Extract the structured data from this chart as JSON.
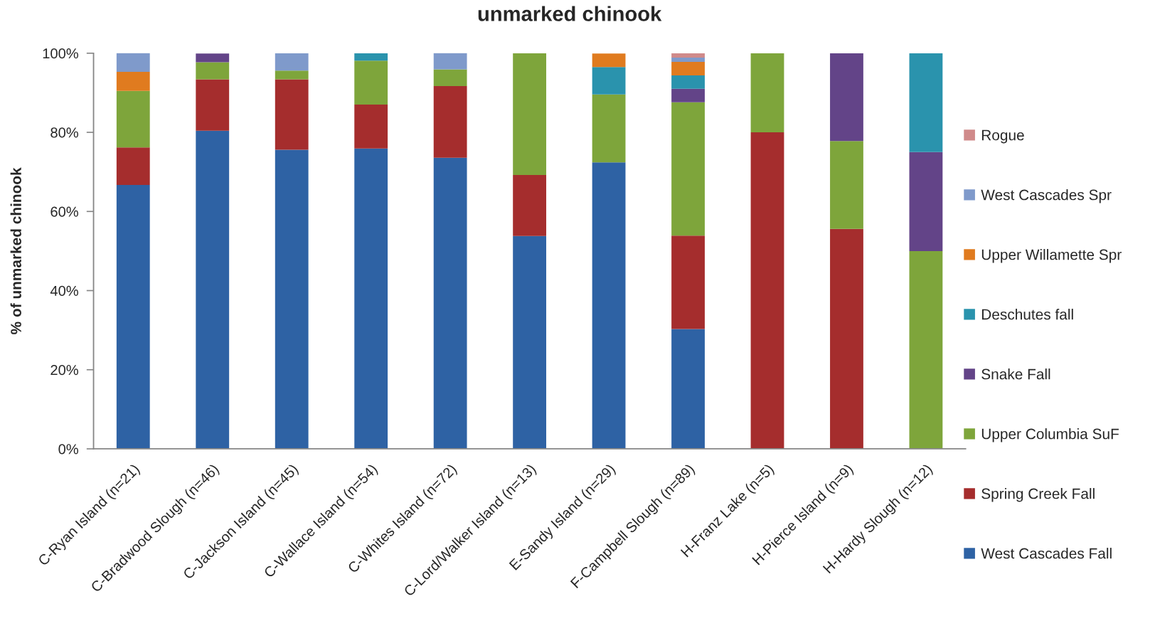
{
  "chart_data": {
    "type": "bar",
    "title": "unmarked chinook",
    "ylabel": "% of unmarked chinook",
    "stacked": true,
    "categories": [
      "C-Ryan Island (n=21)",
      "C-Bradwood Slough (n=46)",
      "C-Jackson Island (n=45)",
      "C-Wallace Island (n=54)",
      "C-Whites Island (n=72)",
      "C-Lord/Walker Island (n=13)",
      "E-Sandy Island (n=29)",
      "F-Campbell Slough (n=89)",
      "H-Franz Lake (n=5)",
      "H-Pierce Island (n=9)",
      "H-Hardy Slough (n=12)"
    ],
    "series": [
      {
        "name": "West Cascades Fall",
        "color": "#2e62a4",
        "values": [
          66.7,
          80.4,
          75.6,
          75.9,
          73.6,
          53.8,
          72.4,
          30.3,
          0,
          0,
          0
        ]
      },
      {
        "name": "Spring Creek Fall",
        "color": "#a52d2d",
        "values": [
          9.5,
          13.0,
          17.8,
          11.1,
          18.1,
          15.4,
          0,
          23.6,
          80,
          55.6,
          0
        ]
      },
      {
        "name": "Upper Columbia SuF",
        "color": "#7ea53b",
        "values": [
          14.3,
          4.3,
          2.2,
          11.1,
          4.2,
          30.8,
          17.2,
          33.7,
          20,
          22.2,
          50
        ]
      },
      {
        "name": "Snake Fall",
        "color": "#634488",
        "values": [
          0,
          2.2,
          0,
          0,
          0,
          0,
          0,
          3.4,
          0,
          22.2,
          25
        ]
      },
      {
        "name": "Deschutes fall",
        "color": "#2a93ad",
        "values": [
          0,
          0,
          0,
          1.9,
          0,
          0,
          6.9,
          3.4,
          0,
          0,
          25
        ]
      },
      {
        "name": "Upper Willamette Spr",
        "color": "#e07b1f",
        "values": [
          4.8,
          0,
          0,
          0,
          0,
          0,
          3.4,
          3.4,
          0,
          0,
          0
        ]
      },
      {
        "name": "West Cascades Spr",
        "color": "#7f9acb",
        "values": [
          4.8,
          0,
          4.4,
          0,
          4.2,
          0,
          0,
          1.1,
          0,
          0,
          0
        ]
      },
      {
        "name": "Rogue",
        "color": "#d08a8a",
        "values": [
          0,
          0,
          0,
          0,
          0,
          0,
          0,
          1.1,
          0,
          0,
          0
        ]
      }
    ],
    "ylim": [
      0,
      100
    ],
    "yticks": [
      {
        "value": 0,
        "label": "0%"
      },
      {
        "value": 20,
        "label": "20%"
      },
      {
        "value": 40,
        "label": "40%"
      },
      {
        "value": 60,
        "label": "60%"
      },
      {
        "value": 80,
        "label": "80%"
      },
      {
        "value": 100,
        "label": "100%"
      }
    ],
    "grid": false,
    "legend": "right"
  }
}
